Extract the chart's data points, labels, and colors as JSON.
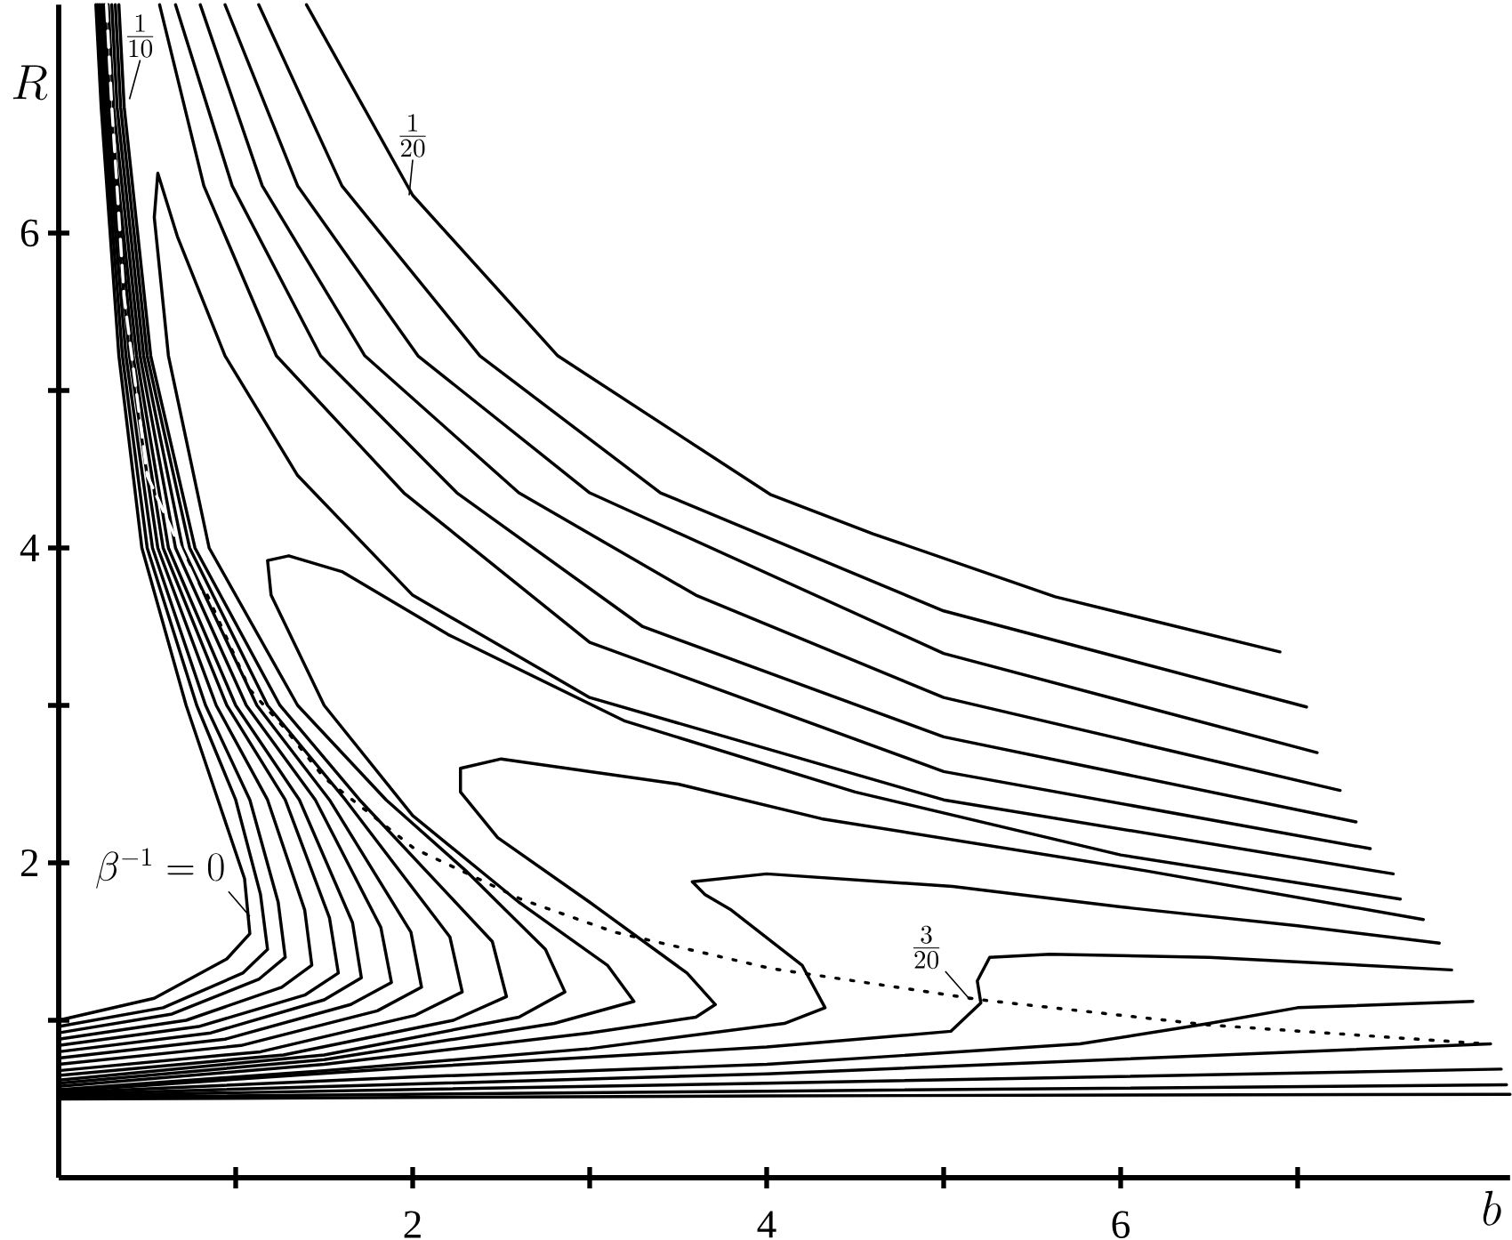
{
  "chart_data": {
    "type": "line",
    "xlabel": "b",
    "ylabel": "R",
    "xlim": [
      0,
      8.2
    ],
    "ylim": [
      0,
      7.45
    ],
    "xticks": [
      {
        "value": 1,
        "label": null
      },
      2,
      {
        "value": 3,
        "label": null
      },
      4,
      {
        "value": 5,
        "label": null
      },
      6,
      {
        "value": 7,
        "label": null
      }
    ],
    "yticks": [
      {
        "value": 1,
        "label": null
      },
      2,
      {
        "value": 3,
        "label": null
      },
      4,
      {
        "value": 5,
        "label": null
      },
      6
    ],
    "line_style": "solid",
    "annotations": [
      {
        "text": "\\frac{1}{10}",
        "x": 0.4,
        "y": 6.85
      },
      {
        "text": "\\frac{1}{20}",
        "x": 1.98,
        "y": 6.24
      },
      {
        "text": "\\frac{3}{20}",
        "x": 5.15,
        "y": 1.13
      },
      {
        "text": "\\beta^{-1}=0",
        "x": 1.08,
        "y": 1.66
      }
    ],
    "series": [
      {
        "color": "#000000",
        "x": [
          0,
          0.54,
          0.95,
          1.08,
          1.05,
          0.9,
          0.72,
          0.47,
          0.34,
          0.24,
          0.21
        ],
        "values": [
          1.0,
          1.14,
          1.39,
          1.55,
          1.9,
          2.4,
          3,
          4,
          5.22,
          6.8,
          7.45
        ]
      },
      {
        "color": "#000000",
        "x": [
          0,
          0.59,
          1.04,
          1.18,
          1.14,
          1.0,
          0.78,
          0.5,
          0.36,
          0.25,
          0.22
        ],
        "values": [
          0.96,
          1.08,
          1.3,
          1.45,
          1.8,
          2.4,
          3,
          4,
          5.22,
          6.8,
          7.45
        ]
      },
      {
        "color": "#000000",
        "x": [
          0,
          0.64,
          1.13,
          1.28,
          1.24,
          1.08,
          0.83,
          0.53,
          0.38,
          0.26,
          0.23
        ],
        "values": [
          0.92,
          1.04,
          1.26,
          1.4,
          1.75,
          2.4,
          3,
          4,
          5.22,
          6.8,
          7.45
        ]
      },
      {
        "color": "#000000",
        "x": [
          0,
          0.72,
          1.26,
          1.43,
          1.39,
          1.18,
          0.89,
          0.56,
          0.4,
          0.27,
          0.24
        ],
        "values": [
          0.88,
          1.0,
          1.21,
          1.35,
          1.7,
          2.4,
          3,
          4,
          5.22,
          6.8,
          7.45
        ]
      },
      {
        "color": "#000000",
        "x": [
          0,
          0.79,
          1.39,
          1.58,
          1.53,
          1.28,
          0.95,
          0.59,
          0.42,
          0.28,
          0.25
        ],
        "values": [
          0.84,
          0.96,
          1.16,
          1.3,
          1.65,
          2.4,
          3,
          4,
          5.22,
          6.8,
          7.45
        ]
      },
      {
        "color": "#000000",
        "x": [
          0,
          0.86,
          1.5,
          1.71,
          1.66,
          1.36,
          1.0,
          0.62,
          0.44,
          0.29,
          0.26
        ],
        "values": [
          0.8,
          0.92,
          1.13,
          1.27,
          1.62,
          2.4,
          3,
          4,
          5.22,
          6.8,
          7.45
        ]
      },
      {
        "color": "#000000",
        "x": [
          0,
          0.94,
          1.65,
          1.88,
          1.82,
          1.45,
          1.06,
          0.66,
          0.46,
          0.31,
          0.28
        ],
        "values": [
          0.76,
          0.88,
          1.1,
          1.24,
          1.59,
          2.4,
          3,
          4,
          5.22,
          6.8,
          7.45
        ]
      },
      {
        "color": "#000000",
        "x": [
          0,
          1.03,
          1.8,
          2.05,
          1.99,
          1.53,
          1.12,
          0.7,
          0.48,
          0.33,
          0.3
        ],
        "values": [
          0.72,
          0.84,
          1.06,
          1.21,
          1.56,
          2.4,
          3,
          4,
          5.22,
          6.8,
          7.45
        ]
      },
      {
        "color": "#000000",
        "x": [
          0,
          1.14,
          2.01,
          2.28,
          2.21,
          1.62,
          1.18,
          0.74,
          0.5,
          0.35,
          0.32
        ],
        "values": [
          0.68,
          0.8,
          1.03,
          1.18,
          1.53,
          2.4,
          3,
          4,
          5.22,
          6.8,
          7.45
        ]
      },
      {
        "color": "#000000",
        "x": [
          0,
          1.27,
          2.23,
          2.53,
          2.45,
          1.7,
          1.25,
          0.77,
          0.52,
          0.37,
          0.34
        ],
        "values": [
          0.65,
          0.78,
          1.0,
          1.15,
          1.5,
          2.4,
          3,
          4,
          5.22,
          6.8,
          7.45
        ]
      },
      {
        "color": "#000000",
        "x": [
          1.4,
          2.0,
          2.82,
          4.02,
          4.6,
          5.63,
          6.9
        ],
        "values": [
          7.45,
          6.24,
          5.22,
          4.34,
          4.09,
          3.69,
          3.34
        ]
      },
      {
        "color": "#000000",
        "x": [
          1.13,
          1.6,
          2.38,
          3.4,
          5.0,
          7.05
        ],
        "values": [
          7.45,
          6.3,
          5.22,
          4.35,
          3.6,
          2.99
        ]
      },
      {
        "color": "#000000",
        "x": [
          0.94,
          1.35,
          2.03,
          3.0,
          5.0,
          7.11
        ],
        "values": [
          7.45,
          6.3,
          5.22,
          4.35,
          3.33,
          2.7
        ]
      },
      {
        "color": "#000000",
        "x": [
          0.8,
          1.15,
          1.73,
          2.6,
          3.6,
          5.0,
          7.24
        ],
        "values": [
          7.45,
          6.3,
          5.22,
          4.35,
          3.7,
          3.05,
          2.46
        ]
      },
      {
        "color": "#000000",
        "x": [
          0.66,
          0.98,
          1.48,
          2.25,
          3.3,
          5.0,
          7.33
        ],
        "values": [
          7.45,
          6.3,
          5.22,
          4.35,
          3.5,
          2.8,
          2.26
        ]
      },
      {
        "color": "#000000",
        "x": [
          0.57,
          0.82,
          1.23,
          1.95,
          3.0,
          5.0,
          7.41
        ],
        "values": [
          7.45,
          6.3,
          5.22,
          4.35,
          3.4,
          2.58,
          2.09
        ]
      },
      {
        "color": "#000000",
        "x": [
          0,
          1.5,
          2.6,
          2.86,
          2.75,
          2.3,
          1.85,
          1.35,
          0.85,
          0.62,
          0.54,
          0.56,
          0.67,
          0.94,
          1.35,
          2.0,
          3.0,
          5.0,
          7.54
        ],
        "values": [
          0.62,
          0.78,
          1.02,
          1.18,
          1.45,
          1.95,
          2.4,
          3.0,
          4.0,
          5.22,
          6.1,
          6.38,
          5.98,
          5.22,
          4.46,
          3.7,
          3.05,
          2.4,
          1.93
        ]
      },
      {
        "color": "#000000",
        "x": [
          0,
          1.5,
          2.8,
          3.25,
          3.1,
          2.6,
          2.0,
          1.5,
          1.2,
          1.18,
          1.3,
          1.6,
          2.2,
          3.2,
          4.5,
          6.0,
          7.58
        ],
        "values": [
          0.6,
          0.75,
          0.98,
          1.12,
          1.35,
          1.75,
          2.3,
          3.0,
          3.7,
          3.92,
          3.95,
          3.85,
          3.45,
          2.9,
          2.45,
          2.05,
          1.77
        ]
      },
      {
        "color": "#000000",
        "x": [
          0,
          1.5,
          3.0,
          3.6,
          3.71,
          3.55,
          3.0,
          2.48,
          2.27,
          2.27,
          2.5,
          3.5,
          4.31,
          6.14,
          7.71
        ],
        "values": [
          0.58,
          0.72,
          0.92,
          1.02,
          1.1,
          1.3,
          1.75,
          2.16,
          2.45,
          2.6,
          2.66,
          2.5,
          2.28,
          1.95,
          1.64
        ]
      },
      {
        "color": "#000000",
        "x": [
          0,
          1.5,
          3.0,
          4.1,
          4.33,
          4.2,
          3.8,
          3.65,
          3.58,
          4.0,
          5.05,
          6.0,
          7.0,
          7.8
        ],
        "values": [
          0.56,
          0.68,
          0.82,
          0.98,
          1.08,
          1.35,
          1.7,
          1.8,
          1.88,
          1.93,
          1.85,
          1.72,
          1.6,
          1.49
        ]
      },
      {
        "color": "#000000",
        "x": [
          0,
          2.0,
          4.0,
          5.04,
          5.21,
          5.19,
          5.26,
          5.6,
          6.5,
          7.87
        ],
        "values": [
          0.55,
          0.7,
          0.83,
          0.93,
          1.11,
          1.25,
          1.4,
          1.42,
          1.4,
          1.32
        ]
      },
      {
        "color": "#000000",
        "x": [
          0,
          2.0,
          4.0,
          5.77,
          6.5,
          7.0,
          7.99
        ],
        "values": [
          0.54,
          0.64,
          0.72,
          0.85,
          0.98,
          1.08,
          1.12
        ]
      },
      {
        "color": "#000000",
        "x": [
          0,
          4.0,
          8.09
        ],
        "values": [
          0.53,
          0.66,
          0.85
        ]
      },
      {
        "color": "#000000",
        "x": [
          0,
          4.0,
          8.15
        ],
        "values": [
          0.52,
          0.6,
          0.69
        ]
      },
      {
        "color": "#000000",
        "x": [
          0,
          4.0,
          8.18
        ],
        "values": [
          0.51,
          0.55,
          0.59
        ]
      },
      {
        "color": "#000000",
        "x": [
          0,
          4.0,
          8.2
        ],
        "values": [
          0.5,
          0.52,
          0.53
        ]
      },
      {
        "color": "#000000",
        "line_style": "dotted",
        "x": [
          0.84,
          1.08,
          1.28,
          1.5,
          1.75,
          2.01,
          2.35,
          2.61,
          3.14,
          4.02,
          5.21,
          6.5,
          8.07
        ],
        "values": [
          3.7,
          3.1,
          2.85,
          2.54,
          2.32,
          2.09,
          1.91,
          1.77,
          1.56,
          1.33,
          1.13,
          0.97,
          0.85
        ]
      },
      {
        "color": "#ffffff",
        "line_style": "dashed",
        "x": [
          0.27,
          0.3,
          0.37,
          0.5,
          0.8
        ],
        "values": [
          7.45,
          6.8,
          5.59,
          4.46,
          3.72
        ]
      }
    ]
  }
}
